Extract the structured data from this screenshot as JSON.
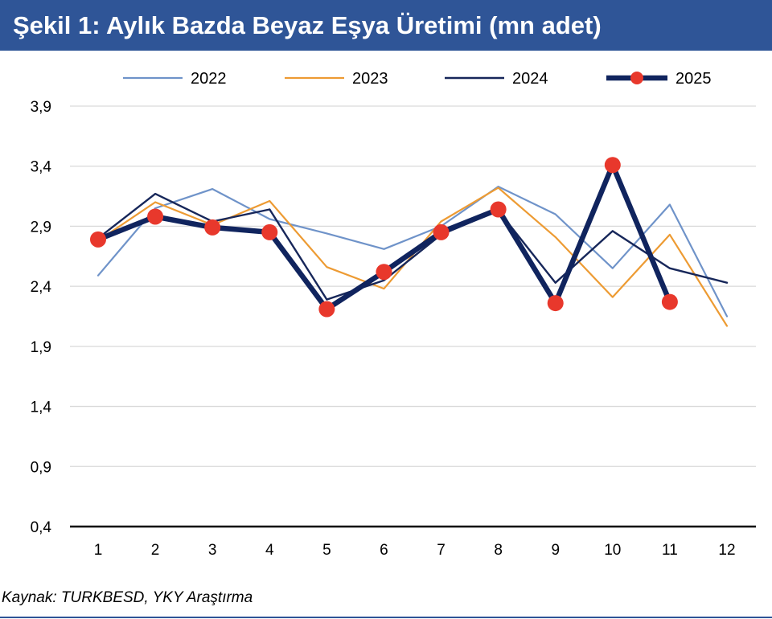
{
  "header": {
    "title": "Şekil 1: Aylık Bazda Beyaz Eşya Üretimi (mn adet)"
  },
  "footer": {
    "source": "Kaynak: TURKBESD, YKY Araştırma"
  },
  "colors": {
    "title_background": "#2f5597",
    "series_2022": "#6f93c9",
    "series_2023": "#ed9b33",
    "series_2024": "#17275a",
    "series_2025_line": "#10245e",
    "series_2025_marker": "#e8382c",
    "grid": "#d9d9d9"
  },
  "chart_data": {
    "type": "line",
    "title": "",
    "xlabel": "",
    "ylabel": "",
    "x": [
      1,
      2,
      3,
      4,
      5,
      6,
      7,
      8,
      9,
      10,
      11,
      12
    ],
    "x_tick_labels": [
      "1",
      "2",
      "3",
      "4",
      "5",
      "6",
      "7",
      "8",
      "9",
      "10",
      "11",
      "12"
    ],
    "ylim": [
      0.4,
      3.9
    ],
    "y_ticks": [
      0.4,
      0.9,
      1.4,
      1.9,
      2.4,
      2.9,
      3.4,
      3.9
    ],
    "y_tick_labels": [
      "0,4",
      "0,9",
      "1,4",
      "1,9",
      "2,4",
      "2,9",
      "3,4",
      "3,9"
    ],
    "grid": true,
    "legend_position": "top",
    "series": [
      {
        "name": "2022",
        "values": [
          2.49,
          3.05,
          3.21,
          2.96,
          2.84,
          2.71,
          2.9,
          3.23,
          3.0,
          2.55,
          3.08,
          2.15
        ],
        "style": "line"
      },
      {
        "name": "2023",
        "values": [
          2.78,
          3.1,
          2.91,
          3.11,
          2.56,
          2.38,
          2.94,
          3.22,
          2.81,
          2.31,
          2.83,
          2.07
        ],
        "style": "line"
      },
      {
        "name": "2024",
        "values": [
          2.8,
          3.17,
          2.94,
          3.04,
          2.29,
          2.45,
          2.83,
          3.03,
          2.43,
          2.86,
          2.55,
          2.43
        ],
        "style": "line"
      },
      {
        "name": "2025",
        "values": [
          2.79,
          2.98,
          2.89,
          2.85,
          2.21,
          2.52,
          2.85,
          3.04,
          2.26,
          3.41,
          2.27,
          null
        ],
        "style": "line-marker"
      }
    ]
  }
}
